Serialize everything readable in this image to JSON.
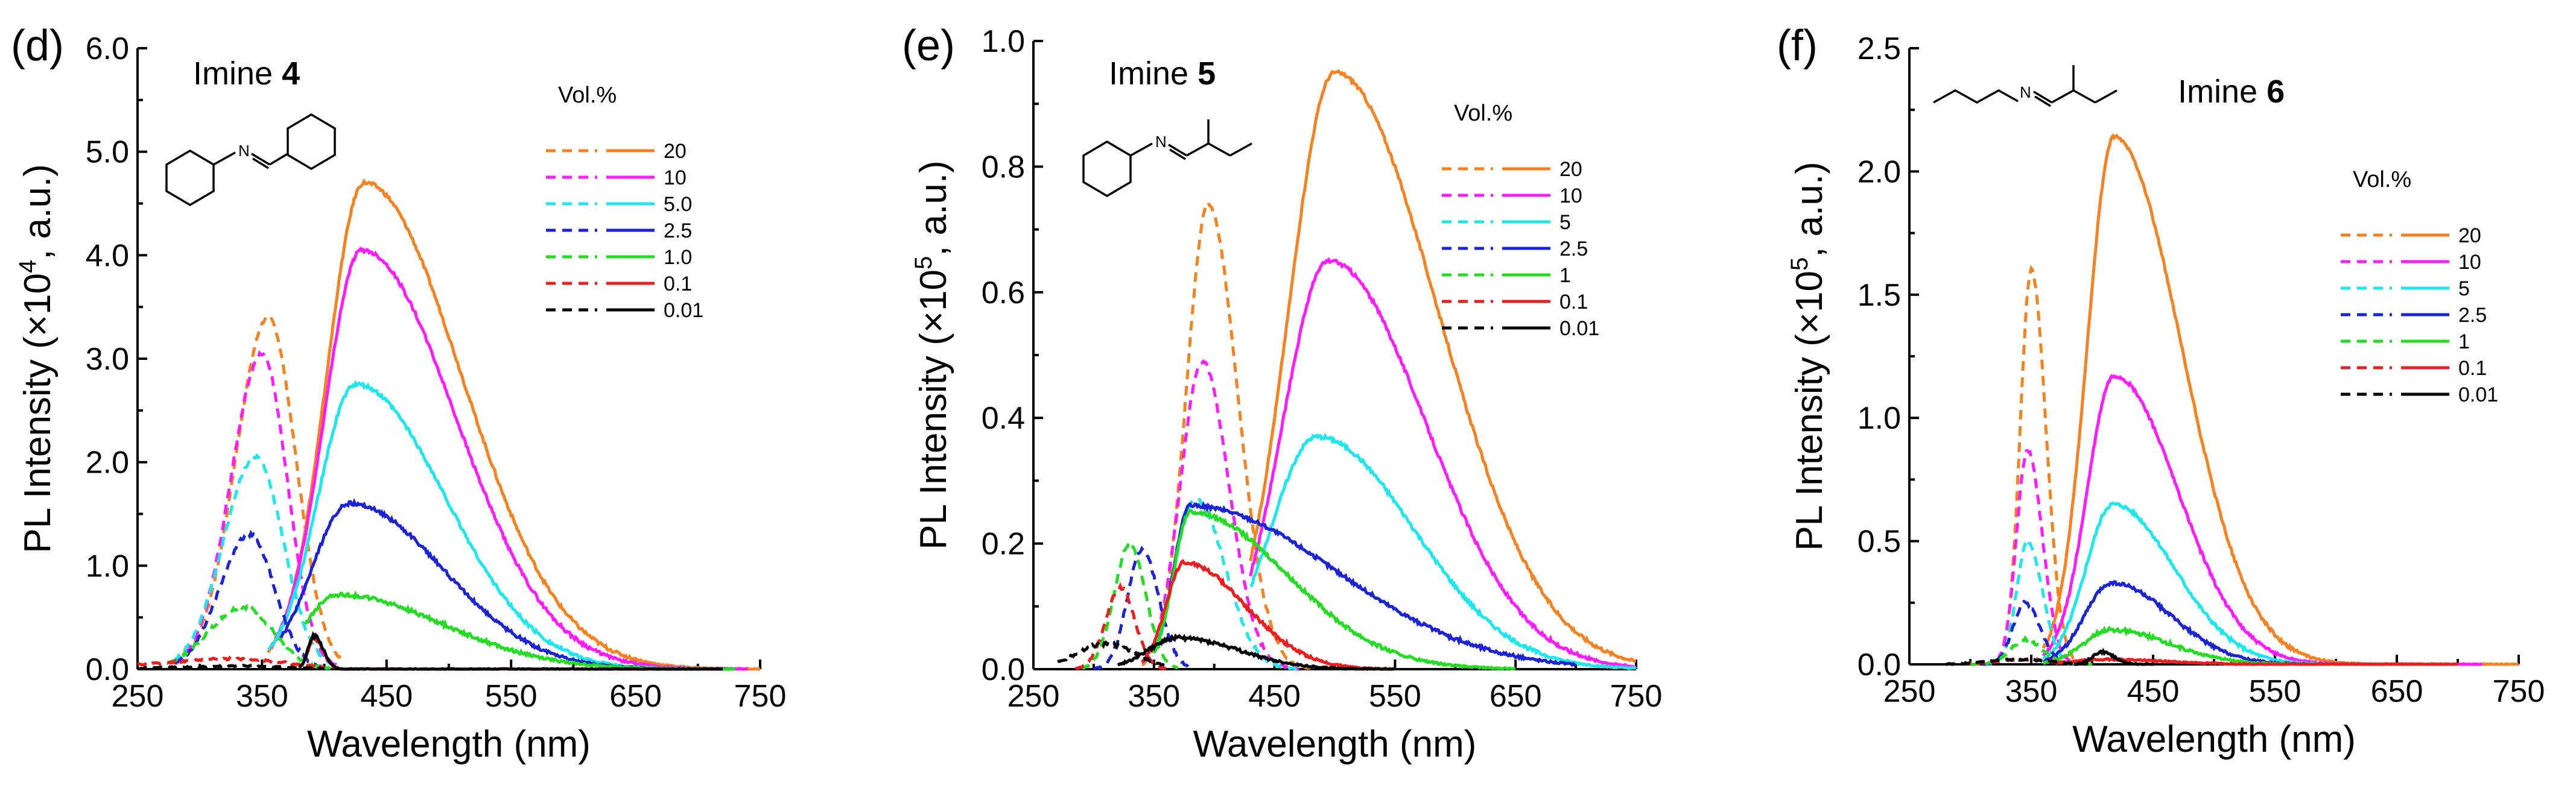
{
  "figure": {
    "panels": [
      {
        "id": "d",
        "label": "(d)",
        "compound": "Imine ",
        "compound_num": "4",
        "legend_title": "Vol.%",
        "series_labels": [
          "20",
          "10",
          "5.0",
          "2.5",
          "1.0",
          "0.1",
          "0.01"
        ],
        "xlabel": "Wavelength (nm)",
        "ylabel_pre": "PL Intensity (×10",
        "ylabel_exp": "4",
        "ylabel_post": ", a.u.)",
        "y_ticks": [
          "0.0",
          "1.0",
          "2.0",
          "3.0",
          "4.0",
          "5.0",
          "6.0"
        ],
        "x_ticks": [
          "250",
          "350",
          "450",
          "550",
          "650",
          "750"
        ]
      },
      {
        "id": "e",
        "label": "(e)",
        "compound": "Imine ",
        "compound_num": "5",
        "legend_title": "Vol.%",
        "series_labels": [
          "20",
          "10",
          "5",
          "2.5",
          "1",
          "0.1",
          "0.01"
        ],
        "xlabel": "Wavelength (nm)",
        "ylabel_pre": "PL Intensity (×10",
        "ylabel_exp": "5",
        "ylabel_post": ", a.u.)",
        "y_ticks": [
          "0.0",
          "0.2",
          "0.4",
          "0.6",
          "0.8",
          "1.0"
        ],
        "x_ticks": [
          "250",
          "350",
          "450",
          "550",
          "650",
          "750"
        ]
      },
      {
        "id": "f",
        "label": "(f)",
        "compound": "Imine ",
        "compound_num": "6",
        "legend_title": "Vol.%",
        "series_labels": [
          "20",
          "10",
          "5",
          "2.5",
          "1",
          "0.1",
          "0.01"
        ],
        "xlabel": "Wavelength (nm)",
        "ylabel_pre": "PL Intensity (×10",
        "ylabel_exp": "5",
        "ylabel_post": ", a.u.)",
        "y_ticks": [
          "0.0",
          "0.5",
          "1.0",
          "1.5",
          "2.0",
          "2.5"
        ],
        "x_ticks": [
          "250",
          "350",
          "450",
          "550",
          "650",
          "750"
        ]
      }
    ]
  },
  "chart_data": [
    {
      "type": "line",
      "panel": "(d)",
      "title": "Imine 4",
      "xlabel": "Wavelength (nm)",
      "ylabel": "PL Intensity (×10^4, a.u.)",
      "xlim": [
        250,
        750
      ],
      "ylim": [
        0,
        6
      ],
      "legend_title": "Vol.%",
      "series_colors": [
        "#f5811f",
        "#ff19ff",
        "#1ae8ee",
        "#1a23d6",
        "#22dd22",
        "#ee1c1c",
        "#000000"
      ],
      "series": [
        {
          "name": "20",
          "dashed_peak": {
            "center": 355,
            "height": 3.4,
            "width_left": 26,
            "width_right": 22,
            "start": 280,
            "end": 415
          },
          "solid_peak": {
            "center": 432,
            "height": 4.7,
            "width_left": 30,
            "width_right": 78,
            "start": 355,
            "end": 750
          }
        },
        {
          "name": "10",
          "dashed_peak": {
            "center": 350,
            "height": 3.05,
            "width_left": 25,
            "width_right": 20,
            "start": 280,
            "end": 410
          },
          "solid_peak": {
            "center": 430,
            "height": 4.05,
            "width_left": 30,
            "width_right": 75,
            "start": 355,
            "end": 740
          }
        },
        {
          "name": "5.0",
          "dashed_peak": {
            "center": 345,
            "height": 2.05,
            "width_left": 26,
            "width_right": 22,
            "start": 280,
            "end": 410
          },
          "solid_peak": {
            "center": 425,
            "height": 2.75,
            "width_left": 30,
            "width_right": 72,
            "start": 355,
            "end": 730
          }
        },
        {
          "name": "2.5",
          "dashed_peak": {
            "center": 340,
            "height": 1.3,
            "width_left": 24,
            "width_right": 20,
            "start": 280,
            "end": 405
          },
          "solid_peak": {
            "center": 420,
            "height": 1.6,
            "width_left": 30,
            "width_right": 75,
            "start": 365,
            "end": 730
          }
        },
        {
          "name": "1.0",
          "dashed_peak": {
            "center": 335,
            "height": 0.6,
            "width_left": 28,
            "width_right": 24,
            "start": 275,
            "end": 405
          },
          "solid_peak": {
            "center": 410,
            "height": 0.72,
            "width_left": 25,
            "width_right": 85,
            "start": 385,
            "end": 730
          }
        },
        {
          "name": "0.1",
          "dashed_peak": {
            "center": 330,
            "height": 0.1,
            "width_left": 60,
            "width_right": 40,
            "start": 250,
            "end": 400
          },
          "solid_peak": {
            "center": 392,
            "height": 0.3,
            "width_left": 5,
            "width_right": 7,
            "start": 380,
            "end": 720
          }
        },
        {
          "name": "0.01",
          "dashed_peak": {
            "center": 330,
            "height": 0.03,
            "width_left": 50,
            "width_right": 40,
            "start": 250,
            "end": 400
          },
          "solid_peak": {
            "center": 392,
            "height": 0.32,
            "width_left": 5,
            "width_right": 7,
            "start": 380,
            "end": 720
          }
        }
      ]
    },
    {
      "type": "line",
      "panel": "(e)",
      "title": "Imine 5",
      "xlabel": "Wavelength (nm)",
      "ylabel": "PL Intensity (×10^5, a.u.)",
      "xlim": [
        250,
        750
      ],
      "ylim": [
        0,
        1.0
      ],
      "legend_title": "Vol.%",
      "series_colors": [
        "#f5811f",
        "#ff19ff",
        "#1ae8ee",
        "#1a23d6",
        "#22dd22",
        "#ee1c1c",
        "#000000"
      ],
      "series": [
        {
          "name": "20",
          "dashed_peak": {
            "center": 395,
            "height": 0.74,
            "width_left": 18,
            "width_right": 24,
            "start": 340,
            "end": 480
          },
          "solid_peak": {
            "center": 500,
            "height": 0.95,
            "width_left": 38,
            "width_right": 85,
            "start": 430,
            "end": 750
          }
        },
        {
          "name": "10",
          "dashed_peak": {
            "center": 390,
            "height": 0.49,
            "width_left": 18,
            "width_right": 22,
            "start": 340,
            "end": 470
          },
          "solid_peak": {
            "center": 495,
            "height": 0.65,
            "width_left": 38,
            "width_right": 80,
            "start": 430,
            "end": 750
          }
        },
        {
          "name": "5",
          "dashed_peak": {
            "center": 385,
            "height": 0.27,
            "width_left": 18,
            "width_right": 24,
            "start": 340,
            "end": 470
          },
          "solid_peak": {
            "center": 485,
            "height": 0.37,
            "width_left": 38,
            "width_right": 80,
            "start": 430,
            "end": 750
          }
        },
        {
          "name": "2.5",
          "dashed_peak": {
            "center": 340,
            "height": 0.19,
            "width_left": 12,
            "width_right": 14,
            "start": 300,
            "end": 380
          },
          "solid_peak": {
            "center": 380,
            "height": 0.26,
            "width_left": 14,
            "width_right": 120,
            "start": 350,
            "end": 700
          }
        },
        {
          "name": "1",
          "dashed_peak": {
            "center": 330,
            "height": 0.2,
            "width_left": 13,
            "width_right": 13,
            "start": 290,
            "end": 370
          },
          "solid_peak": {
            "center": 380,
            "height": 0.25,
            "width_left": 14,
            "width_right": 80,
            "start": 350,
            "end": 650
          }
        },
        {
          "name": "0.1",
          "dashed_peak": {
            "center": 322,
            "height": 0.13,
            "width_left": 12,
            "width_right": 12,
            "start": 285,
            "end": 360
          },
          "solid_peak": {
            "center": 375,
            "height": 0.17,
            "width_left": 15,
            "width_right": 50,
            "start": 340,
            "end": 550
          }
        },
        {
          "name": "0.01",
          "dashed_peak": {
            "center": 310,
            "height": 0.04,
            "width_left": 25,
            "width_right": 25,
            "start": 270,
            "end": 360
          },
          "solid_peak": {
            "center": 370,
            "height": 0.05,
            "width_left": 25,
            "width_right": 50,
            "start": 320,
            "end": 550
          }
        }
      ]
    },
    {
      "type": "line",
      "panel": "(f)",
      "title": "Imine 6",
      "xlabel": "Wavelength (nm)",
      "ylabel": "PL Intensity (×10^5, a.u.)",
      "xlim": [
        250,
        750
      ],
      "ylim": [
        0,
        2.5
      ],
      "legend_title": "Vol.%",
      "series_colors": [
        "#f5811f",
        "#ff19ff",
        "#1ae8ee",
        "#1a23d6",
        "#22dd22",
        "#ee1c1c",
        "#000000"
      ],
      "series": [
        {
          "name": "20",
          "dashed_peak": {
            "center": 350,
            "height": 1.6,
            "width_left": 9,
            "width_right": 12,
            "start": 310,
            "end": 400
          },
          "solid_peak": {
            "center": 418,
            "height": 2.14,
            "width_left": 22,
            "width_right": 55,
            "start": 360,
            "end": 750
          }
        },
        {
          "name": "10",
          "dashed_peak": {
            "center": 347,
            "height": 0.87,
            "width_left": 9,
            "width_right": 12,
            "start": 310,
            "end": 395
          },
          "solid_peak": {
            "center": 418,
            "height": 1.17,
            "width_left": 22,
            "width_right": 52,
            "start": 360,
            "end": 720
          }
        },
        {
          "name": "5",
          "dashed_peak": {
            "center": 347,
            "height": 0.5,
            "width_left": 9,
            "width_right": 12,
            "start": 310,
            "end": 395
          },
          "solid_peak": {
            "center": 417,
            "height": 0.65,
            "width_left": 22,
            "width_right": 50,
            "start": 360,
            "end": 700
          }
        },
        {
          "name": "2.5",
          "dashed_peak": {
            "center": 345,
            "height": 0.25,
            "width_left": 10,
            "width_right": 12,
            "start": 310,
            "end": 395
          },
          "solid_peak": {
            "center": 416,
            "height": 0.33,
            "width_left": 22,
            "width_right": 48,
            "start": 360,
            "end": 680
          }
        },
        {
          "name": "1",
          "dashed_peak": {
            "center": 345,
            "height": 0.1,
            "width_left": 12,
            "width_right": 14,
            "start": 300,
            "end": 400
          },
          "solid_peak": {
            "center": 415,
            "height": 0.14,
            "width_left": 22,
            "width_right": 48,
            "start": 360,
            "end": 680
          }
        },
        {
          "name": "0.1",
          "dashed_peak": {
            "center": 345,
            "height": 0.02,
            "width_left": 25,
            "width_right": 25,
            "start": 280,
            "end": 400
          },
          "solid_peak": {
            "center": 410,
            "height": 0.02,
            "width_left": 25,
            "width_right": 50,
            "start": 370,
            "end": 700
          }
        },
        {
          "name": "0.01",
          "dashed_peak": {
            "center": 340,
            "height": 0.02,
            "width_left": 25,
            "width_right": 25,
            "start": 280,
            "end": 400
          },
          "solid_peak": {
            "center": 408,
            "height": 0.05,
            "width_left": 8,
            "width_right": 10,
            "start": 385,
            "end": 450
          }
        }
      ]
    }
  ]
}
